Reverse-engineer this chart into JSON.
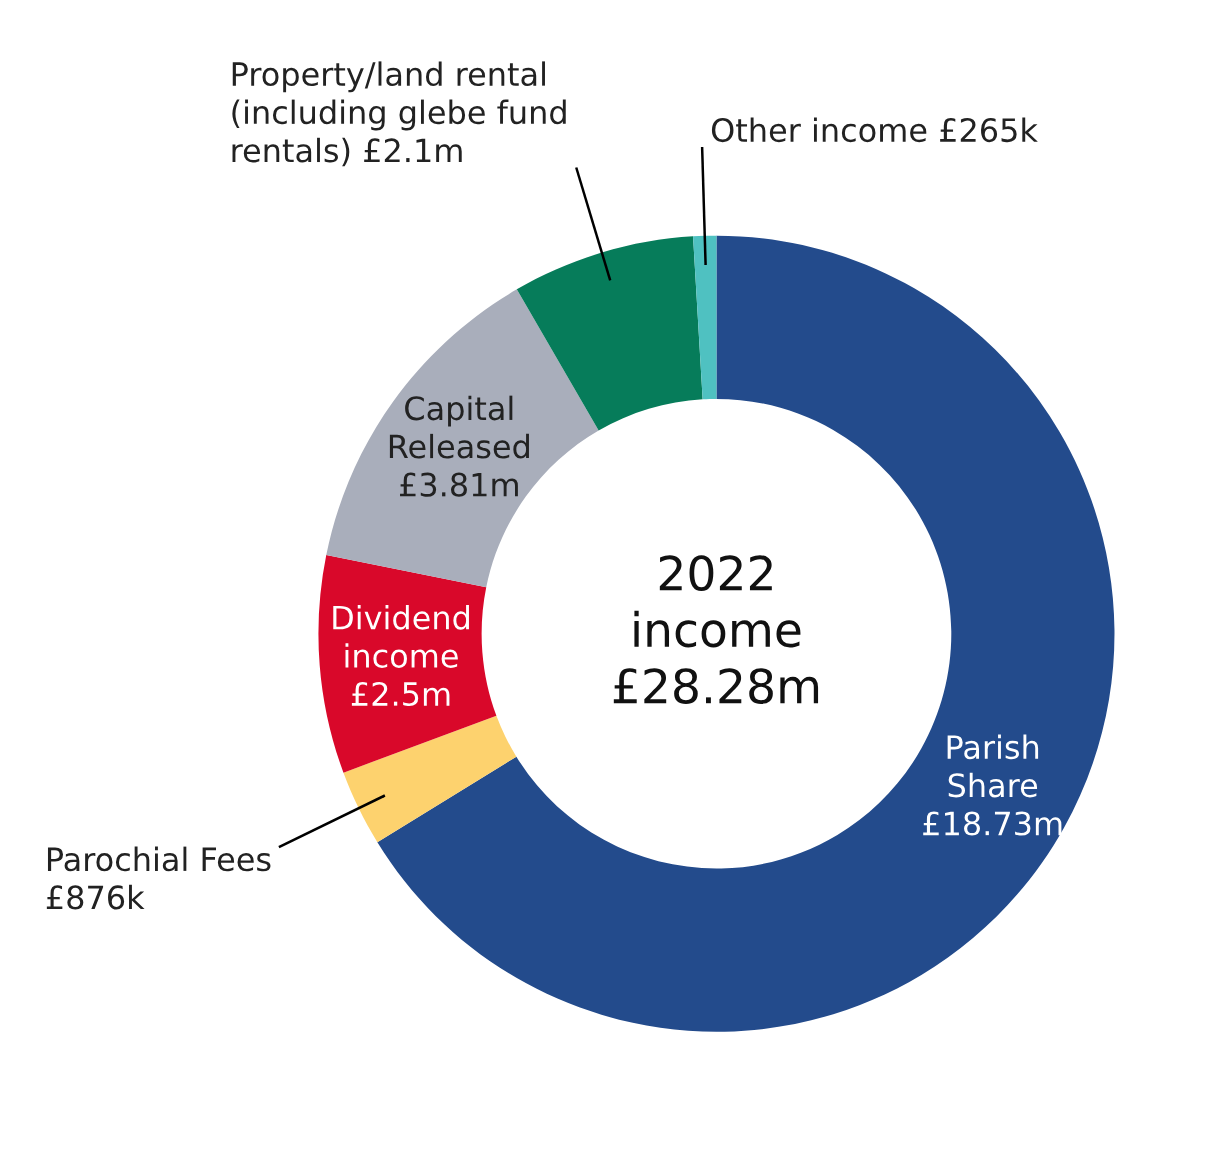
{
  "chart_data": {
    "type": "donut",
    "title": "2022\nincome\n£28.28m",
    "categories": [
      "Parish\nShare\n£18.73m",
      "Parochial Fees\n£876k",
      "Dividend\nincome\n£2.5m",
      "Capital\nReleased\n£3.81m",
      "Property/land rental\n(including glebe fund\nrentals) £2.1m",
      "Other income £265k"
    ],
    "values": [
      18.73,
      0.876,
      2.5,
      3.81,
      2.1,
      0.265
    ],
    "colors": [
      "#234b8c",
      "#fdd26e",
      "#d9082a",
      "#a9aebb",
      "#067c5a",
      "#4fc1c1"
    ],
    "legend": false
  }
}
